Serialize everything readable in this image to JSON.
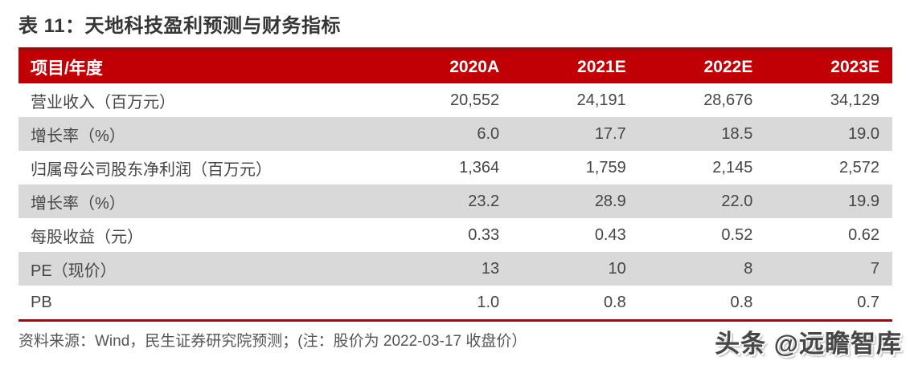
{
  "title": "表 11：天地科技盈利预测与财务指标",
  "table": {
    "header": [
      "项目/年度",
      "2020A",
      "2021E",
      "2022E",
      "2023E"
    ],
    "rows": [
      {
        "label": "营业收入（百万元）",
        "values": [
          "20,552",
          "24,191",
          "28,676",
          "34,129"
        ]
      },
      {
        "label": "增长率（%）",
        "values": [
          "6.0",
          "17.7",
          "18.5",
          "19.0"
        ]
      },
      {
        "label": "归属母公司股东净利润（百万元）",
        "values": [
          "1,364",
          "1,759",
          "2,145",
          "2,572"
        ]
      },
      {
        "label": "增长率（%）",
        "values": [
          "23.2",
          "28.9",
          "22.0",
          "19.9"
        ]
      },
      {
        "label": "每股收益（元）",
        "values": [
          "0.33",
          "0.43",
          "0.52",
          "0.62"
        ]
      },
      {
        "label": "PE（现价）",
        "values": [
          "13",
          "10",
          "8",
          "7"
        ]
      },
      {
        "label": "PB",
        "values": [
          "1.0",
          "0.8",
          "0.8",
          "0.7"
        ]
      }
    ]
  },
  "footer": {
    "source_note": "资料来源：Wind，民生证券研究院预测；(注：股价为 2022-03-17 收盘价）"
  },
  "watermark": "头条 @远瞻智库",
  "colors": {
    "header_bg": "#C00004",
    "border_dark_red": "#8C1013",
    "row_alt_bg": "#D9D9D9",
    "title_text": "#363636",
    "cell_text": "#454545",
    "header_text": "#FFFFFF",
    "footer_text": "#555555"
  }
}
